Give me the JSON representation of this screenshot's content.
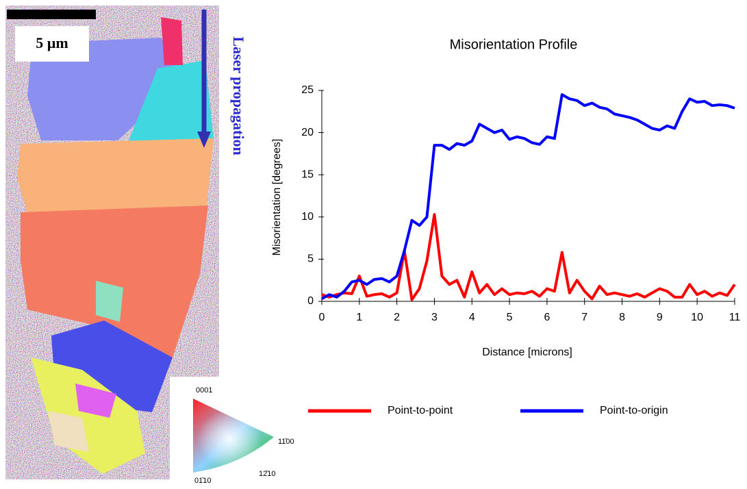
{
  "chart_data": {
    "type": "line",
    "title": "Misorientation Profile",
    "x_label": "Distance [microns]",
    "y_label": "Misorientation [degrees]",
    "x": [
      0,
      0.2,
      0.4,
      0.6,
      0.8,
      1.0,
      1.2,
      1.4,
      1.6,
      1.8,
      2.0,
      2.2,
      2.4,
      2.6,
      2.8,
      3.0,
      3.2,
      3.4,
      3.6,
      3.8,
      4.0,
      4.2,
      4.4,
      4.6,
      4.8,
      5.0,
      5.2,
      5.4,
      5.6,
      5.8,
      6.0,
      6.2,
      6.4,
      6.6,
      6.8,
      7.0,
      7.2,
      7.4,
      7.6,
      7.8,
      8.0,
      8.2,
      8.4,
      8.6,
      8.8,
      9.0,
      9.2,
      9.4,
      9.6,
      9.8,
      10.0,
      10.2,
      10.4,
      10.6,
      10.8,
      11.0
    ],
    "series": [
      {
        "name": "Point-to-point",
        "color": "#ff0000",
        "values": [
          0.8,
          0.5,
          0.8,
          1.0,
          0.9,
          3.0,
          0.6,
          0.8,
          0.9,
          0.5,
          1.0,
          6.0,
          0.2,
          1.5,
          4.8,
          10.3,
          3.0,
          2.0,
          2.5,
          0.5,
          3.5,
          1.0,
          2.0,
          0.8,
          1.5,
          0.8,
          1.0,
          0.9,
          1.2,
          0.6,
          1.5,
          1.2,
          5.8,
          1.0,
          2.5,
          1.2,
          0.3,
          1.8,
          0.8,
          1.0,
          0.8,
          0.6,
          0.9,
          0.5,
          1.0,
          1.5,
          1.2,
          0.5,
          0.5,
          2.0,
          0.8,
          1.2,
          0.6,
          1.0,
          0.7,
          2.0
        ]
      },
      {
        "name": "Point-to-origin",
        "color": "#0000ff",
        "values": [
          0.3,
          0.8,
          0.5,
          1.2,
          2.3,
          2.5,
          2.0,
          2.6,
          2.7,
          2.3,
          3.0,
          6.0,
          9.6,
          9.0,
          10.0,
          18.5,
          18.5,
          18.0,
          18.7,
          18.5,
          19.0,
          21.0,
          20.5,
          20.0,
          20.3,
          19.2,
          19.5,
          19.3,
          18.8,
          18.6,
          19.5,
          19.3,
          24.5,
          24.0,
          23.8,
          23.2,
          23.5,
          23.0,
          22.8,
          22.2,
          22.0,
          21.8,
          21.5,
          21.0,
          20.5,
          20.3,
          20.8,
          20.5,
          22.5,
          24.0,
          23.6,
          23.7,
          23.2,
          23.3,
          23.2,
          22.9
        ]
      }
    ],
    "xlim": [
      0,
      11
    ],
    "xticks": [
      0,
      1,
      2,
      3,
      4,
      5,
      6,
      7,
      8,
      9,
      10,
      11
    ],
    "ylim": [
      0,
      25
    ],
    "yticks": [
      0,
      5,
      10,
      15,
      20,
      25
    ],
    "grid": false,
    "legend": "bottom"
  },
  "image": {
    "scale_bar": "5 µm",
    "annotation": "Laser propagation",
    "color_key": [
      "0001",
      "11̄00",
      "01̄10",
      "12̄10"
    ]
  }
}
